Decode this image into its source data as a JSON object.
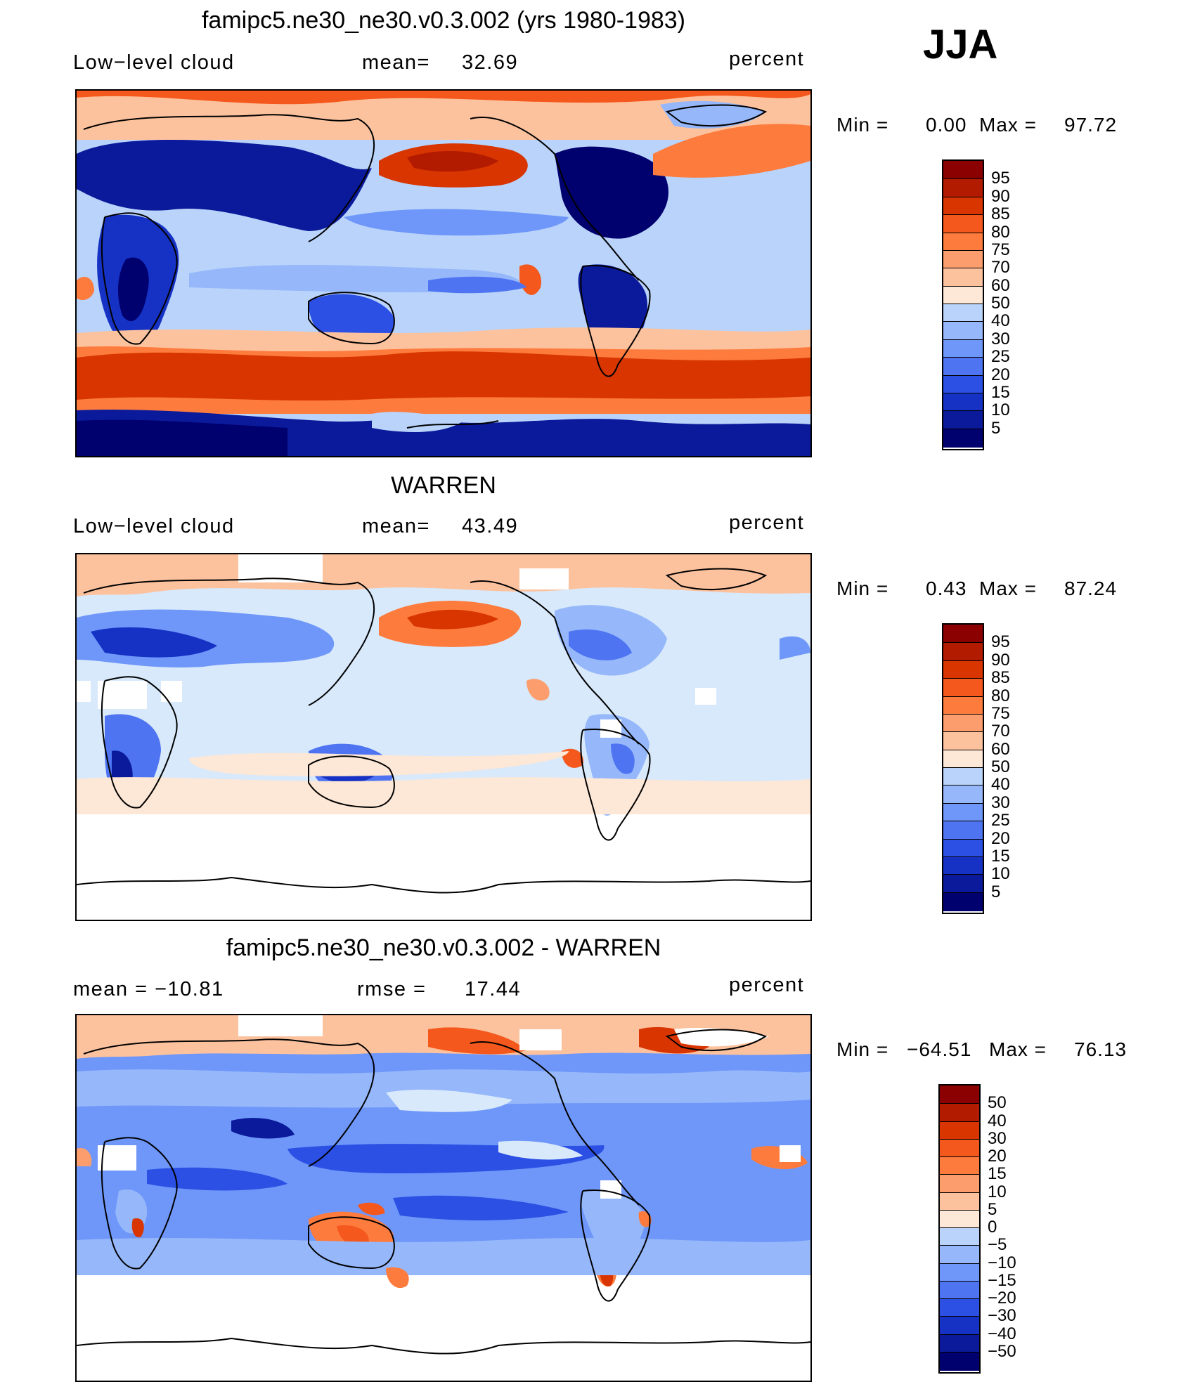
{
  "season": "JJA",
  "colors": {
    "warm": [
      "#8b0000",
      "#b21b00",
      "#d83500",
      "#f5581c",
      "#fd7b3d",
      "#fb9d6c",
      "#fcc29e",
      "#fde7d6"
    ],
    "cool": [
      "#d8e9fb",
      "#b9d3fa",
      "#96b8fb",
      "#6f97f9",
      "#4e74f2",
      "#2c50e4",
      "#1632c4",
      "#0a1a9a",
      "#00006e"
    ]
  },
  "panels": [
    {
      "title": "famipc5.ne30_ne30.v0.3.002 (yrs 1980-1983)",
      "left_label": "Low−level cloud",
      "mid_label": "mean=",
      "mid_value": "32.69",
      "units": "percent",
      "min_label": "Min =",
      "min_value": "0.00",
      "max_label": "Max =",
      "max_value": "97.72",
      "contour_levels": [
        "95",
        "90",
        "85",
        "80",
        "75",
        "70",
        "60",
        "50",
        "40",
        "30",
        "25",
        "20",
        "15",
        "10",
        "5"
      ]
    },
    {
      "title": "WARREN",
      "left_label": "Low−level cloud",
      "mid_label": "mean=",
      "mid_value": "43.49",
      "units": "percent",
      "min_label": "Min =",
      "min_value": "0.43",
      "max_label": "Max =",
      "max_value": "87.24",
      "contour_levels": [
        "95",
        "90",
        "85",
        "80",
        "75",
        "70",
        "60",
        "50",
        "40",
        "30",
        "25",
        "20",
        "15",
        "10",
        "5"
      ]
    },
    {
      "title": "famipc5.ne30_ne30.v0.3.002 - WARREN",
      "left_label": "mean = −10.81",
      "mid_label": "rmse =",
      "mid_value": "17.44",
      "units": "percent",
      "min_label": "Min =",
      "min_value": "−64.51",
      "max_label": "Max =",
      "max_value": "76.13",
      "contour_levels": [
        "50",
        "40",
        "30",
        "20",
        "15",
        "10",
        "5",
        "0",
        "−5",
        "−10",
        "−15",
        "−20",
        "−30",
        "−40",
        "−50"
      ]
    }
  ]
}
